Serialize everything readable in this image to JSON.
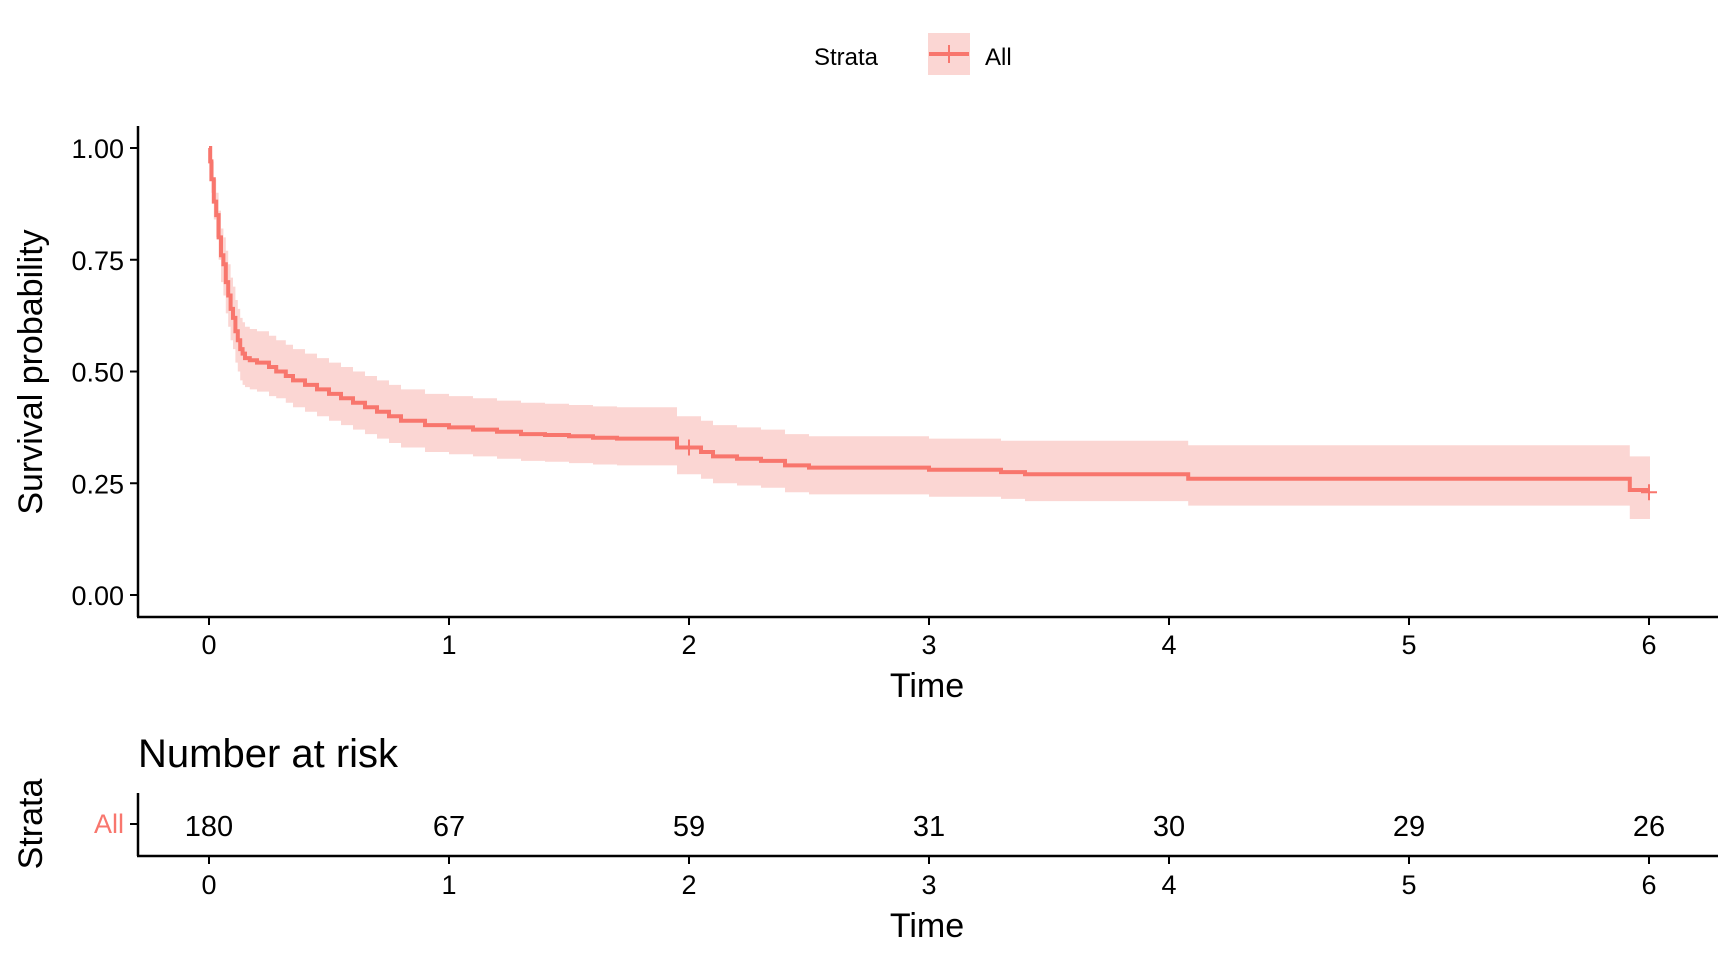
{
  "legend": {
    "title": "Strata",
    "label": "All"
  },
  "colors": {
    "curve": "#f8766d",
    "band": "#fbd6d3",
    "axis": "#000000"
  },
  "chart_data": [
    {
      "type": "line",
      "title": "",
      "xlabel": "Time",
      "ylabel": "Survival probability",
      "xlim": [
        -0.3,
        6.3
      ],
      "ylim": [
        -0.05,
        1.05
      ],
      "x_ticks": [
        "0",
        "1",
        "2",
        "3",
        "4",
        "5",
        "6"
      ],
      "y_ticks": [
        "0.00",
        "0.25",
        "0.50",
        "0.75",
        "1.00"
      ],
      "legend_position": "top",
      "series": [
        {
          "name": "All",
          "step": true,
          "x": [
            0,
            0.005,
            0.01,
            0.02,
            0.03,
            0.04,
            0.05,
            0.06,
            0.07,
            0.08,
            0.09,
            0.1,
            0.11,
            0.12,
            0.13,
            0.14,
            0.15,
            0.17,
            0.2,
            0.25,
            0.28,
            0.32,
            0.35,
            0.4,
            0.45,
            0.5,
            0.55,
            0.6,
            0.65,
            0.7,
            0.75,
            0.8,
            0.9,
            1.0,
            1.1,
            1.2,
            1.3,
            1.4,
            1.5,
            1.6,
            1.7,
            1.8,
            1.9,
            1.95,
            2.05,
            2.1,
            2.2,
            2.3,
            2.4,
            2.5,
            2.6,
            2.7,
            2.8,
            2.9,
            3.0,
            3.1,
            3.2,
            3.3,
            3.4,
            3.6,
            3.8,
            4.0,
            4.08,
            4.5,
            5.0,
            5.5,
            5.9,
            5.92,
            6.0
          ],
          "y": [
            1.0,
            0.97,
            0.93,
            0.88,
            0.85,
            0.8,
            0.76,
            0.74,
            0.7,
            0.67,
            0.64,
            0.62,
            0.59,
            0.57,
            0.55,
            0.54,
            0.53,
            0.525,
            0.52,
            0.51,
            0.5,
            0.49,
            0.48,
            0.47,
            0.46,
            0.45,
            0.44,
            0.43,
            0.42,
            0.41,
            0.4,
            0.39,
            0.38,
            0.375,
            0.37,
            0.365,
            0.36,
            0.358,
            0.355,
            0.352,
            0.35,
            0.35,
            0.35,
            0.33,
            0.32,
            0.31,
            0.305,
            0.3,
            0.29,
            0.285,
            0.285,
            0.285,
            0.285,
            0.285,
            0.28,
            0.28,
            0.28,
            0.275,
            0.27,
            0.27,
            0.27,
            0.27,
            0.26,
            0.26,
            0.26,
            0.26,
            0.26,
            0.235,
            0.235
          ],
          "lower": [
            1.0,
            0.95,
            0.9,
            0.84,
            0.8,
            0.75,
            0.7,
            0.67,
            0.63,
            0.6,
            0.57,
            0.55,
            0.52,
            0.5,
            0.48,
            0.47,
            0.465,
            0.46,
            0.455,
            0.445,
            0.44,
            0.43,
            0.42,
            0.41,
            0.4,
            0.39,
            0.38,
            0.37,
            0.36,
            0.35,
            0.34,
            0.33,
            0.32,
            0.315,
            0.31,
            0.305,
            0.3,
            0.298,
            0.295,
            0.292,
            0.29,
            0.29,
            0.29,
            0.27,
            0.26,
            0.25,
            0.245,
            0.24,
            0.23,
            0.225,
            0.225,
            0.225,
            0.225,
            0.225,
            0.22,
            0.22,
            0.22,
            0.215,
            0.21,
            0.21,
            0.21,
            0.21,
            0.2,
            0.2,
            0.2,
            0.2,
            0.2,
            0.17,
            0.17
          ],
          "upper": [
            1.0,
            0.99,
            0.97,
            0.93,
            0.9,
            0.86,
            0.82,
            0.8,
            0.77,
            0.74,
            0.71,
            0.69,
            0.66,
            0.64,
            0.62,
            0.61,
            0.6,
            0.595,
            0.59,
            0.58,
            0.57,
            0.56,
            0.55,
            0.54,
            0.53,
            0.52,
            0.51,
            0.5,
            0.49,
            0.48,
            0.47,
            0.46,
            0.45,
            0.445,
            0.44,
            0.435,
            0.43,
            0.428,
            0.425,
            0.422,
            0.42,
            0.42,
            0.42,
            0.4,
            0.39,
            0.38,
            0.375,
            0.37,
            0.36,
            0.355,
            0.355,
            0.355,
            0.355,
            0.355,
            0.35,
            0.35,
            0.35,
            0.345,
            0.345,
            0.345,
            0.345,
            0.345,
            0.335,
            0.335,
            0.335,
            0.335,
            0.335,
            0.31,
            0.31
          ],
          "censor_marks": [
            [
              2.0,
              0.33
            ],
            [
              6.0,
              0.23
            ]
          ]
        }
      ]
    },
    {
      "type": "table",
      "title": "Number at risk",
      "xlabel": "Time",
      "ylabel": "Strata",
      "row_labels": [
        "All"
      ],
      "x": [
        0,
        1,
        2,
        3,
        4,
        5,
        6
      ],
      "x_ticks": [
        "0",
        "1",
        "2",
        "3",
        "4",
        "5",
        "6"
      ],
      "values": [
        [
          "180",
          "67",
          "59",
          "31",
          "30",
          "29",
          "26"
        ]
      ]
    }
  ]
}
